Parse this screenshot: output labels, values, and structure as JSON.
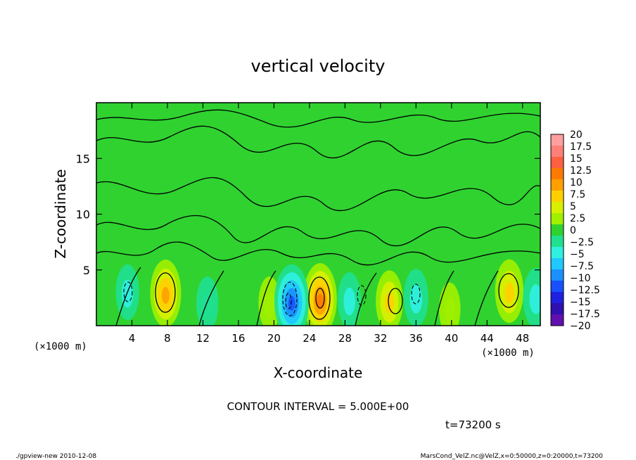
{
  "chart_data": {
    "type": "heatmap",
    "title": "vertical velocity",
    "xlabel": "X-coordinate",
    "ylabel": "Z-coordinate",
    "x_unit_left": "(×1000 m)",
    "x_unit_right": "(×1000 m)",
    "xlim": [
      0,
      50
    ],
    "ylim": [
      0,
      20
    ],
    "x_ticks": [
      "4",
      "8",
      "12",
      "16",
      "20",
      "24",
      "28",
      "32",
      "36",
      "40",
      "44",
      "48"
    ],
    "y_ticks": [
      "5",
      "10",
      "15"
    ],
    "contour_interval_text": "CONTOUR INTERVAL = 5.000E+00",
    "time_text": "t=73200 s",
    "colorbar": {
      "labels": [
        "20",
        "17.5",
        "15",
        "12.5",
        "10",
        "7.5",
        "5",
        "2.5",
        "0",
        "−2.5",
        "−5",
        "−7.5",
        "−10",
        "−12.5",
        "−15",
        "−17.5",
        "−20"
      ],
      "colors": [
        "#ffa0a0",
        "#ff8078",
        "#ff6040",
        "#ff7a00",
        "#ffa000",
        "#ffd000",
        "#d8f000",
        "#a0f000",
        "#30d230",
        "#20e090",
        "#30f0e0",
        "#20c8ff",
        "#1a90ff",
        "#1850ff",
        "#2020e0",
        "#3010b0",
        "#6010b0"
      ]
    },
    "features": [
      {
        "type": "updraft",
        "x": 7.8,
        "z": 2.9,
        "peak": 10
      },
      {
        "type": "updraft",
        "x": 25.2,
        "z": 2.4,
        "peak": 12
      },
      {
        "type": "updraft",
        "x": 33.0,
        "z": 2.2,
        "peak": 7
      },
      {
        "type": "updraft",
        "x": 46.5,
        "z": 3.1,
        "peak": 8
      },
      {
        "type": "updraft",
        "x": 19.5,
        "z": 2.0,
        "peak": 3
      },
      {
        "type": "updraft",
        "x": 39.8,
        "z": 1.5,
        "peak": 2.5
      },
      {
        "type": "downdraft",
        "x": 22.0,
        "z": 2.2,
        "peak": -13
      },
      {
        "type": "downdraft",
        "x": 3.5,
        "z": 3.0,
        "peak": -4
      },
      {
        "type": "downdraft",
        "x": 28.5,
        "z": 2.3,
        "peak": -4
      },
      {
        "type": "downdraft",
        "x": 36.0,
        "z": 2.5,
        "peak": -5
      },
      {
        "type": "downdraft",
        "x": 12.5,
        "z": 2.0,
        "peak": -3
      },
      {
        "type": "downdraft",
        "x": 49.5,
        "z": 2.5,
        "peak": -6
      }
    ]
  },
  "footer": {
    "left": "./gpview-new  2010-12-08",
    "right": "MarsCond_VelZ.nc@VelZ,x=0:50000,z=0:20000,t=73200"
  }
}
